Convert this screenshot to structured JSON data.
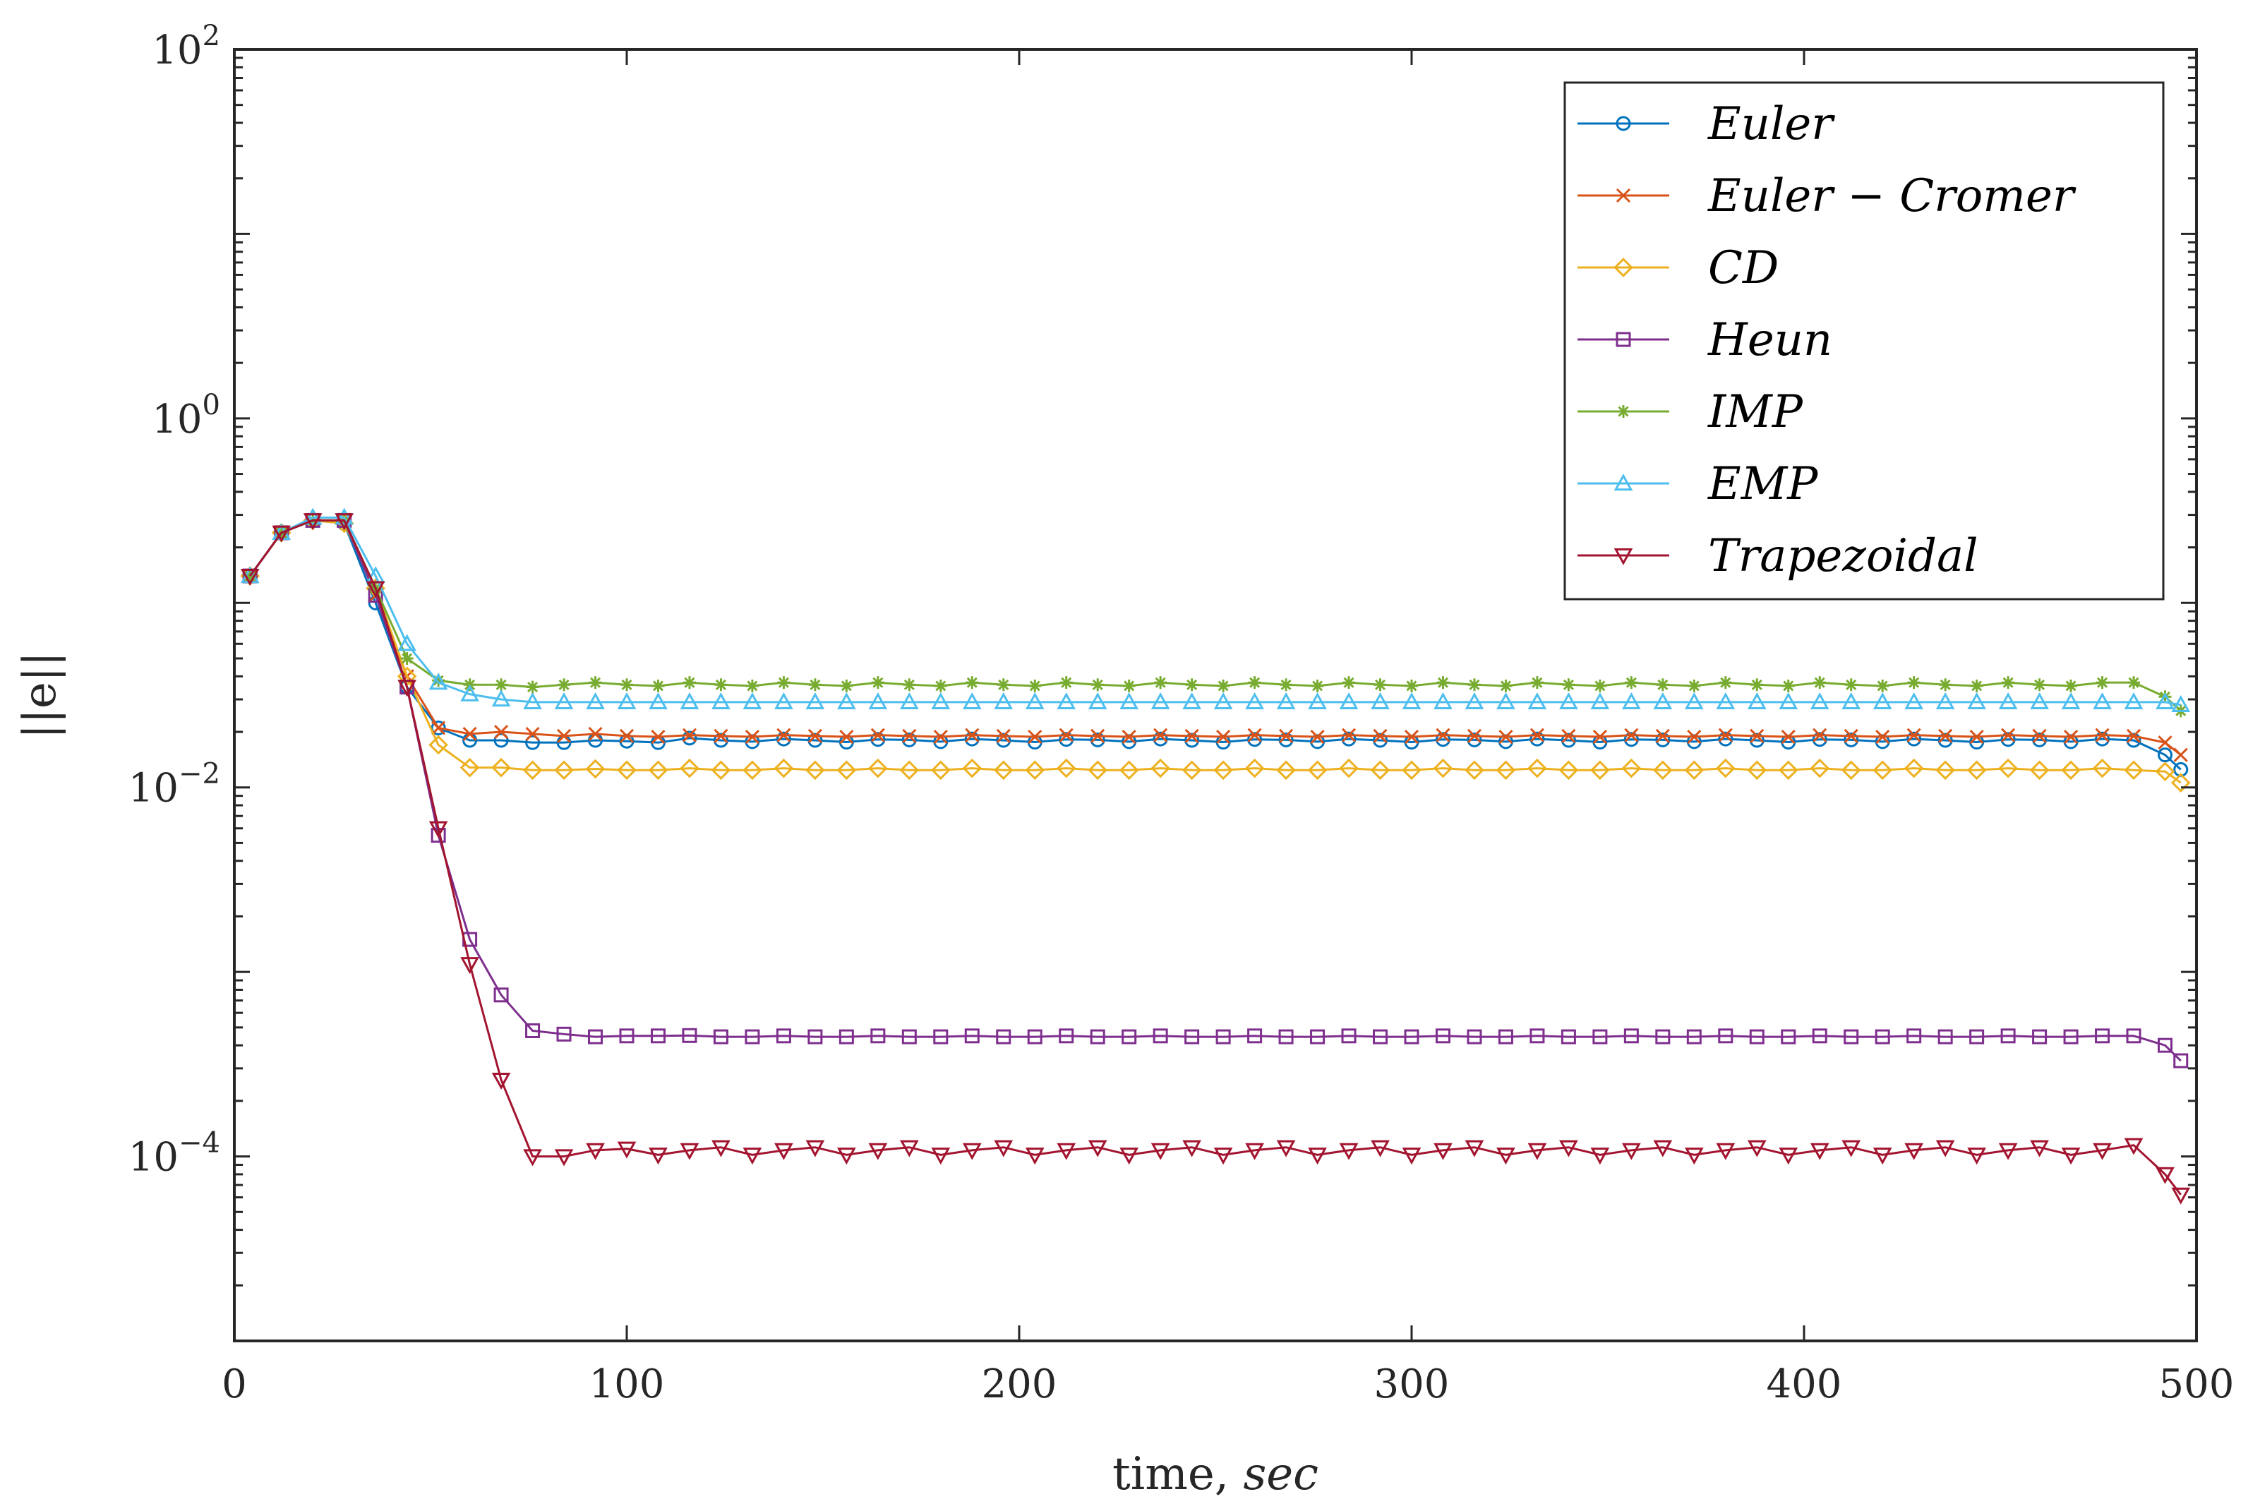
{
  "chart_data": {
    "type": "line",
    "title": "",
    "xlabel": "time,",
    "xlabel_italic": "sec",
    "ylabel": "||e||",
    "xlim": [
      0,
      500
    ],
    "ylim": [
      1e-05,
      100
    ],
    "yscale": "log",
    "xticks": [
      0,
      100,
      200,
      300,
      400,
      500
    ],
    "xtick_labels": [
      "0",
      "100",
      "200",
      "300",
      "400",
      "500"
    ],
    "yticks": [
      0.0001,
      0.01,
      1,
      100
    ],
    "ytick_labels": [
      {
        "base": "10",
        "exp": "−4"
      },
      {
        "base": "10",
        "exp": "−2"
      },
      {
        "base": "10",
        "exp": "0"
      },
      {
        "base": "10",
        "exp": "2"
      }
    ],
    "grid": false,
    "legend_position": "top-right",
    "x": [
      4,
      12,
      20,
      28,
      36,
      44,
      52,
      60,
      68,
      76,
      84,
      92,
      100,
      108,
      116,
      124,
      132,
      140,
      148,
      156,
      164,
      172,
      180,
      188,
      196,
      204,
      212,
      220,
      228,
      236,
      244,
      252,
      260,
      268,
      276,
      284,
      292,
      300,
      308,
      316,
      324,
      332,
      340,
      348,
      356,
      364,
      372,
      380,
      388,
      396,
      404,
      412,
      420,
      428,
      436,
      444,
      452,
      460,
      468,
      476,
      484,
      492,
      496
    ],
    "series": [
      {
        "name": "Euler",
        "color": "#0072BD",
        "marker": "circle",
        "values": [
          0.14,
          0.24,
          0.28,
          0.27,
          0.1,
          0.035,
          0.021,
          0.018,
          0.018,
          0.0175,
          0.0175,
          0.018,
          0.0178,
          0.0175,
          0.0185,
          0.018,
          0.0177,
          0.0183,
          0.018,
          0.0176,
          0.0182,
          0.0181,
          0.0177,
          0.0183,
          0.018,
          0.0176,
          0.0182,
          0.0181,
          0.0177,
          0.0183,
          0.018,
          0.0176,
          0.0182,
          0.0181,
          0.0177,
          0.0183,
          0.018,
          0.0176,
          0.0182,
          0.0181,
          0.0177,
          0.0183,
          0.018,
          0.0176,
          0.0182,
          0.0181,
          0.0177,
          0.0183,
          0.018,
          0.0176,
          0.0182,
          0.0181,
          0.0177,
          0.0183,
          0.018,
          0.0176,
          0.0182,
          0.0181,
          0.0177,
          0.0183,
          0.018,
          0.015,
          0.0125
        ]
      },
      {
        "name": "Euler − Cromer",
        "color": "#D95319",
        "marker": "x",
        "values": [
          0.14,
          0.24,
          0.28,
          0.28,
          0.11,
          0.04,
          0.021,
          0.0195,
          0.02,
          0.0195,
          0.019,
          0.0195,
          0.019,
          0.0188,
          0.0192,
          0.019,
          0.0188,
          0.0192,
          0.019,
          0.0188,
          0.0192,
          0.019,
          0.0188,
          0.0192,
          0.019,
          0.0188,
          0.0192,
          0.019,
          0.0188,
          0.0192,
          0.019,
          0.0188,
          0.0192,
          0.019,
          0.0188,
          0.0192,
          0.019,
          0.0188,
          0.0192,
          0.019,
          0.0188,
          0.0192,
          0.019,
          0.0188,
          0.0192,
          0.019,
          0.0188,
          0.0192,
          0.019,
          0.0188,
          0.0192,
          0.019,
          0.0188,
          0.0192,
          0.019,
          0.0188,
          0.0192,
          0.019,
          0.0188,
          0.0192,
          0.019,
          0.0175,
          0.015
        ]
      },
      {
        "name": "CD",
        "color": "#EDB120",
        "marker": "diamond",
        "values": [
          0.14,
          0.24,
          0.28,
          0.27,
          0.12,
          0.04,
          0.017,
          0.0128,
          0.0128,
          0.0124,
          0.0124,
          0.0126,
          0.0124,
          0.0124,
          0.0127,
          0.0124,
          0.0124,
          0.0127,
          0.0124,
          0.0124,
          0.0127,
          0.0124,
          0.0124,
          0.0127,
          0.0124,
          0.0124,
          0.0127,
          0.0124,
          0.0124,
          0.0127,
          0.0124,
          0.0124,
          0.0127,
          0.0124,
          0.0124,
          0.0127,
          0.0124,
          0.0124,
          0.0127,
          0.0124,
          0.0124,
          0.0127,
          0.0124,
          0.0124,
          0.0127,
          0.0124,
          0.0124,
          0.0127,
          0.0124,
          0.0124,
          0.0127,
          0.0124,
          0.0124,
          0.0127,
          0.0124,
          0.0124,
          0.0127,
          0.0124,
          0.0124,
          0.0127,
          0.0124,
          0.0122,
          0.0106
        ]
      },
      {
        "name": "Heun",
        "color": "#7E2F8E",
        "marker": "square",
        "values": [
          0.14,
          0.24,
          0.28,
          0.28,
          0.11,
          0.035,
          0.0055,
          0.0015,
          0.00075,
          0.00048,
          0.00046,
          0.000445,
          0.00045,
          0.00045,
          0.000452,
          0.000445,
          0.000445,
          0.00045,
          0.000445,
          0.000445,
          0.00045,
          0.000445,
          0.000445,
          0.00045,
          0.000445,
          0.000445,
          0.00045,
          0.000445,
          0.000445,
          0.00045,
          0.000445,
          0.000445,
          0.00045,
          0.000445,
          0.000445,
          0.00045,
          0.000445,
          0.000445,
          0.00045,
          0.000445,
          0.000445,
          0.00045,
          0.000445,
          0.000445,
          0.00045,
          0.000445,
          0.000445,
          0.00045,
          0.000445,
          0.000445,
          0.00045,
          0.000445,
          0.000445,
          0.00045,
          0.000445,
          0.000445,
          0.00045,
          0.000445,
          0.000445,
          0.00045,
          0.00045,
          0.0004,
          0.00033
        ]
      },
      {
        "name": "IMP",
        "color": "#77AC30",
        "marker": "star",
        "values": [
          0.14,
          0.24,
          0.28,
          0.28,
          0.12,
          0.05,
          0.038,
          0.036,
          0.036,
          0.035,
          0.036,
          0.037,
          0.036,
          0.0355,
          0.037,
          0.036,
          0.0355,
          0.037,
          0.036,
          0.0355,
          0.037,
          0.036,
          0.0355,
          0.037,
          0.036,
          0.0355,
          0.037,
          0.036,
          0.0355,
          0.037,
          0.036,
          0.0355,
          0.037,
          0.036,
          0.0355,
          0.037,
          0.036,
          0.0355,
          0.037,
          0.036,
          0.0355,
          0.037,
          0.036,
          0.0355,
          0.037,
          0.036,
          0.0355,
          0.037,
          0.036,
          0.0355,
          0.037,
          0.036,
          0.0355,
          0.037,
          0.036,
          0.0355,
          0.037,
          0.036,
          0.0355,
          0.037,
          0.037,
          0.031,
          0.026
        ]
      },
      {
        "name": "EMP",
        "color": "#4DBEEE",
        "marker": "triangle-up",
        "values": [
          0.14,
          0.24,
          0.29,
          0.29,
          0.14,
          0.06,
          0.037,
          0.032,
          0.03,
          0.029,
          0.029,
          0.029,
          0.029,
          0.029,
          0.029,
          0.029,
          0.029,
          0.029,
          0.029,
          0.029,
          0.029,
          0.029,
          0.029,
          0.029,
          0.029,
          0.029,
          0.029,
          0.029,
          0.029,
          0.029,
          0.029,
          0.029,
          0.029,
          0.029,
          0.029,
          0.029,
          0.029,
          0.029,
          0.029,
          0.029,
          0.029,
          0.029,
          0.029,
          0.029,
          0.029,
          0.029,
          0.029,
          0.029,
          0.029,
          0.029,
          0.029,
          0.029,
          0.029,
          0.029,
          0.029,
          0.029,
          0.029,
          0.029,
          0.029,
          0.029,
          0.029,
          0.029,
          0.028
        ]
      },
      {
        "name": "Trapezoidal",
        "color": "#A2142F",
        "marker": "triangle-down",
        "values": [
          0.14,
          0.24,
          0.28,
          0.28,
          0.12,
          0.035,
          0.006,
          0.0011,
          0.00026,
          0.0001,
          0.0001,
          0.000108,
          0.00011,
          0.000102,
          0.000108,
          0.000112,
          0.000102,
          0.000108,
          0.000112,
          0.000102,
          0.000108,
          0.000112,
          0.000102,
          0.000108,
          0.000112,
          0.000102,
          0.000108,
          0.000112,
          0.000102,
          0.000108,
          0.000112,
          0.000102,
          0.000108,
          0.000112,
          0.000102,
          0.000108,
          0.000112,
          0.000102,
          0.000108,
          0.000112,
          0.000102,
          0.000108,
          0.000112,
          0.000102,
          0.000108,
          0.000112,
          0.000102,
          0.000108,
          0.000112,
          0.000102,
          0.000108,
          0.000112,
          0.000102,
          0.000108,
          0.000112,
          0.000102,
          0.000108,
          0.000112,
          0.000102,
          0.000108,
          0.000115,
          8e-05,
          6.2e-05
        ]
      }
    ]
  }
}
